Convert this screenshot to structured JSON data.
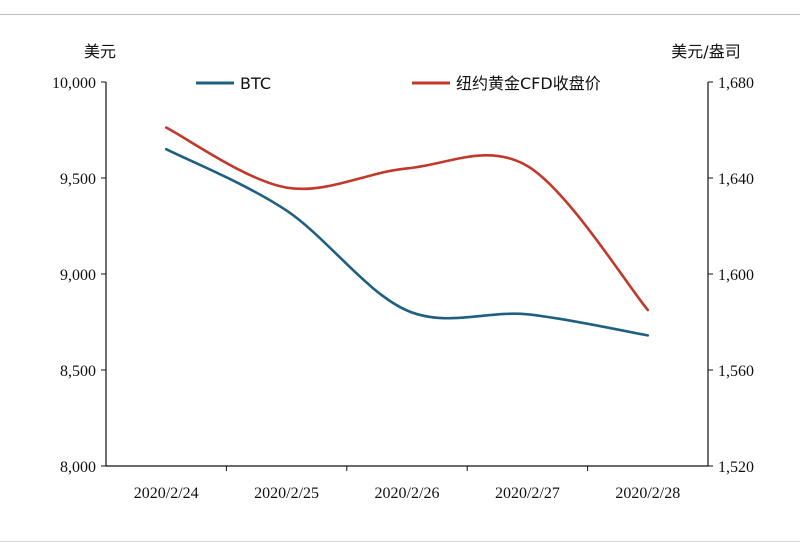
{
  "chart_data": {
    "type": "line",
    "x": [
      "2020/2/24",
      "2020/2/25",
      "2020/2/26",
      "2020/2/27",
      "2020/2/28"
    ],
    "left_axis": {
      "unit": "美元",
      "ylim": [
        8000,
        10000
      ],
      "ticks": [
        8000,
        8500,
        9000,
        9500,
        10000
      ],
      "tick_labels": [
        "8,000",
        "8,500",
        "9,000",
        "9,500",
        "10,000"
      ]
    },
    "right_axis": {
      "unit": "美元/盎司",
      "ylim": [
        1520,
        1680
      ],
      "ticks": [
        1520,
        1560,
        1600,
        1640,
        1680
      ],
      "tick_labels": [
        "1,520",
        "1,560",
        "1,600",
        "1,640",
        "1,680"
      ]
    },
    "series": [
      {
        "name": "BTC",
        "axis": "left",
        "color": "#1f5f80",
        "values": [
          9650,
          9330,
          8810,
          8790,
          8680
        ]
      },
      {
        "name": "纽约黄金CFD收盘价",
        "axis": "right",
        "color": "#c0392b",
        "values": [
          1661,
          1636,
          1644,
          1645,
          1585
        ]
      }
    ],
    "legend_placement": "top",
    "grid": false
  }
}
